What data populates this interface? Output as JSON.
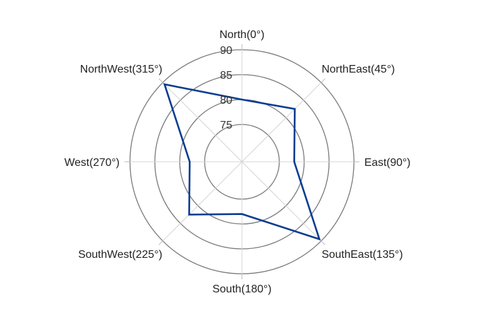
{
  "chart_data": {
    "type": "radar",
    "categories": [
      "North(0°)",
      "NorthEast(45°)",
      "East(90°)",
      "SouthEast(135°)",
      "South(180°)",
      "SouthWest(225°)",
      "West(270°)",
      "NorthWest(315°)"
    ],
    "angles_deg": [
      0,
      45,
      90,
      135,
      180,
      225,
      270,
      315
    ],
    "series": [
      {
        "values": [
          80,
          82.5,
          78,
          89.5,
          78,
          82.5,
          78,
          89.5
        ],
        "color": "#0a3d91"
      }
    ],
    "rlim": [
      75,
      90
    ],
    "r_ticks": [
      75,
      80,
      85,
      90
    ],
    "r_tick_labels": [
      "75",
      "80",
      "85",
      "90"
    ],
    "grid": true,
    "legend": "none"
  }
}
